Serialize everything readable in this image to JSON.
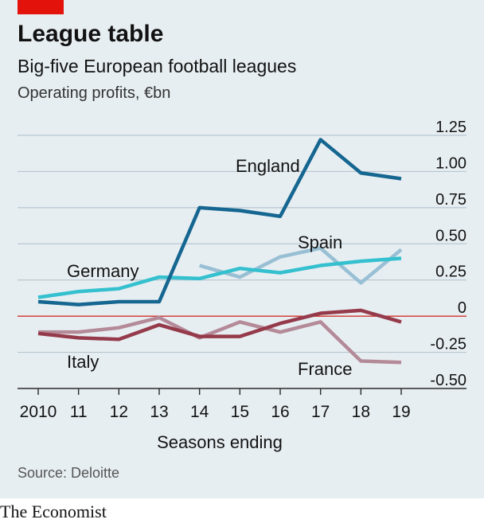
{
  "header": {
    "title": "League table",
    "subtitle": "Big-five European football leagues",
    "unit": "Operating profits, €bn"
  },
  "footer": {
    "source": "Source: Deloitte",
    "brand": "The Economist"
  },
  "colors": {
    "brand_red": "#e3120b",
    "zero_line": "#d0302a",
    "grid": "#b7c6cf",
    "England": "#156690",
    "Spain": "#98bfd4",
    "Germany": "#34c0ce",
    "Italy": "#953a4a",
    "France": "#b48a98"
  },
  "chart_data": {
    "type": "line",
    "title": "League table",
    "subtitle": "Big-five European football leagues",
    "ylabel": "Operating profits, €bn",
    "xlabel": "Seasons ending",
    "ylim": [
      -0.5,
      1.25
    ],
    "yticks": [
      1.25,
      1.0,
      0.75,
      0.5,
      0.25,
      0,
      -0.25,
      -0.5
    ],
    "ytick_labels": [
      "1.25",
      "1.00",
      "0.75",
      "0.50",
      "0.25",
      "0",
      "-0.25",
      "-0.50"
    ],
    "x": [
      2010,
      2011,
      2012,
      2013,
      2014,
      2015,
      2016,
      2017,
      2018,
      2019
    ],
    "xtick_labels": [
      "2010",
      "11",
      "12",
      "13",
      "14",
      "15",
      "16",
      "17",
      "18",
      "19"
    ],
    "grid": true,
    "series": [
      {
        "name": "England",
        "values": [
          0.1,
          0.08,
          0.1,
          0.1,
          0.75,
          0.73,
          0.69,
          1.22,
          0.99,
          0.95
        ]
      },
      {
        "name": "Spain",
        "values": [
          null,
          null,
          null,
          null,
          0.35,
          0.27,
          0.41,
          0.47,
          0.23,
          0.46
        ]
      },
      {
        "name": "Germany",
        "values": [
          0.13,
          0.17,
          0.19,
          0.27,
          0.26,
          0.33,
          0.3,
          0.35,
          0.38,
          0.4
        ]
      },
      {
        "name": "Italy",
        "values": [
          -0.12,
          -0.15,
          -0.16,
          -0.06,
          -0.14,
          -0.14,
          -0.05,
          0.02,
          0.04,
          -0.04
        ]
      },
      {
        "name": "France",
        "values": [
          -0.11,
          -0.11,
          -0.08,
          -0.01,
          -0.15,
          -0.04,
          -0.11,
          -0.04,
          -0.31,
          -0.32
        ]
      }
    ]
  }
}
